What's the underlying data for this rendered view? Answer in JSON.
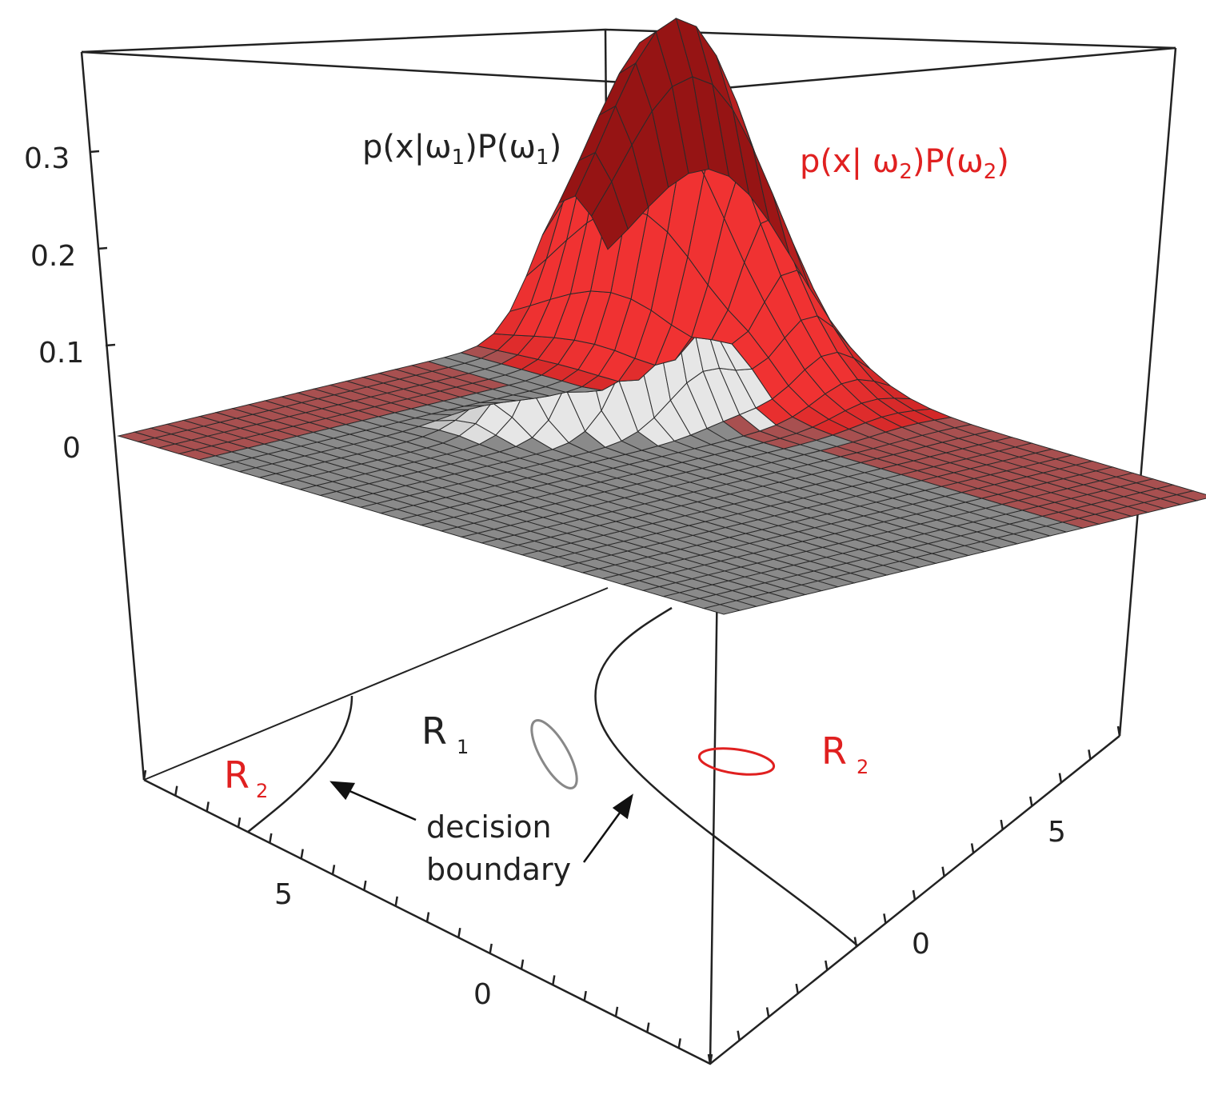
{
  "figure": {
    "z_ticks": [
      "0.3",
      "0.2",
      "0.1",
      "0"
    ],
    "z_tick_values": [
      0.3,
      0.2,
      0.1,
      0
    ],
    "left_axis_ticks": [
      "5",
      "0"
    ],
    "right_axis_ticks": [
      "5",
      "0"
    ],
    "density_labels": {
      "class1": {
        "main": "p(x|ω",
        "sub": "1",
        "mid": ")P(ω",
        "sub2": "1",
        "end": ")"
      },
      "class2": {
        "main": "p(x| ω",
        "sub": "2",
        "mid": ")P(ω",
        "sub2": "2",
        "end": ")"
      }
    },
    "regions": {
      "r2_left": {
        "letter": "R",
        "sub": "2"
      },
      "r1": {
        "letter": "R",
        "sub": "1"
      },
      "r2_right": {
        "letter": "R",
        "sub": "2"
      }
    },
    "annotation": {
      "line1": "decision",
      "line2": "boundary"
    },
    "colors": {
      "class1": "#9a9a9a",
      "class2": "#d42020",
      "text_red": "#e02020",
      "grid_gray": "#8a8a8a",
      "grid_red": "#a85050",
      "box": "#222222"
    }
  }
}
